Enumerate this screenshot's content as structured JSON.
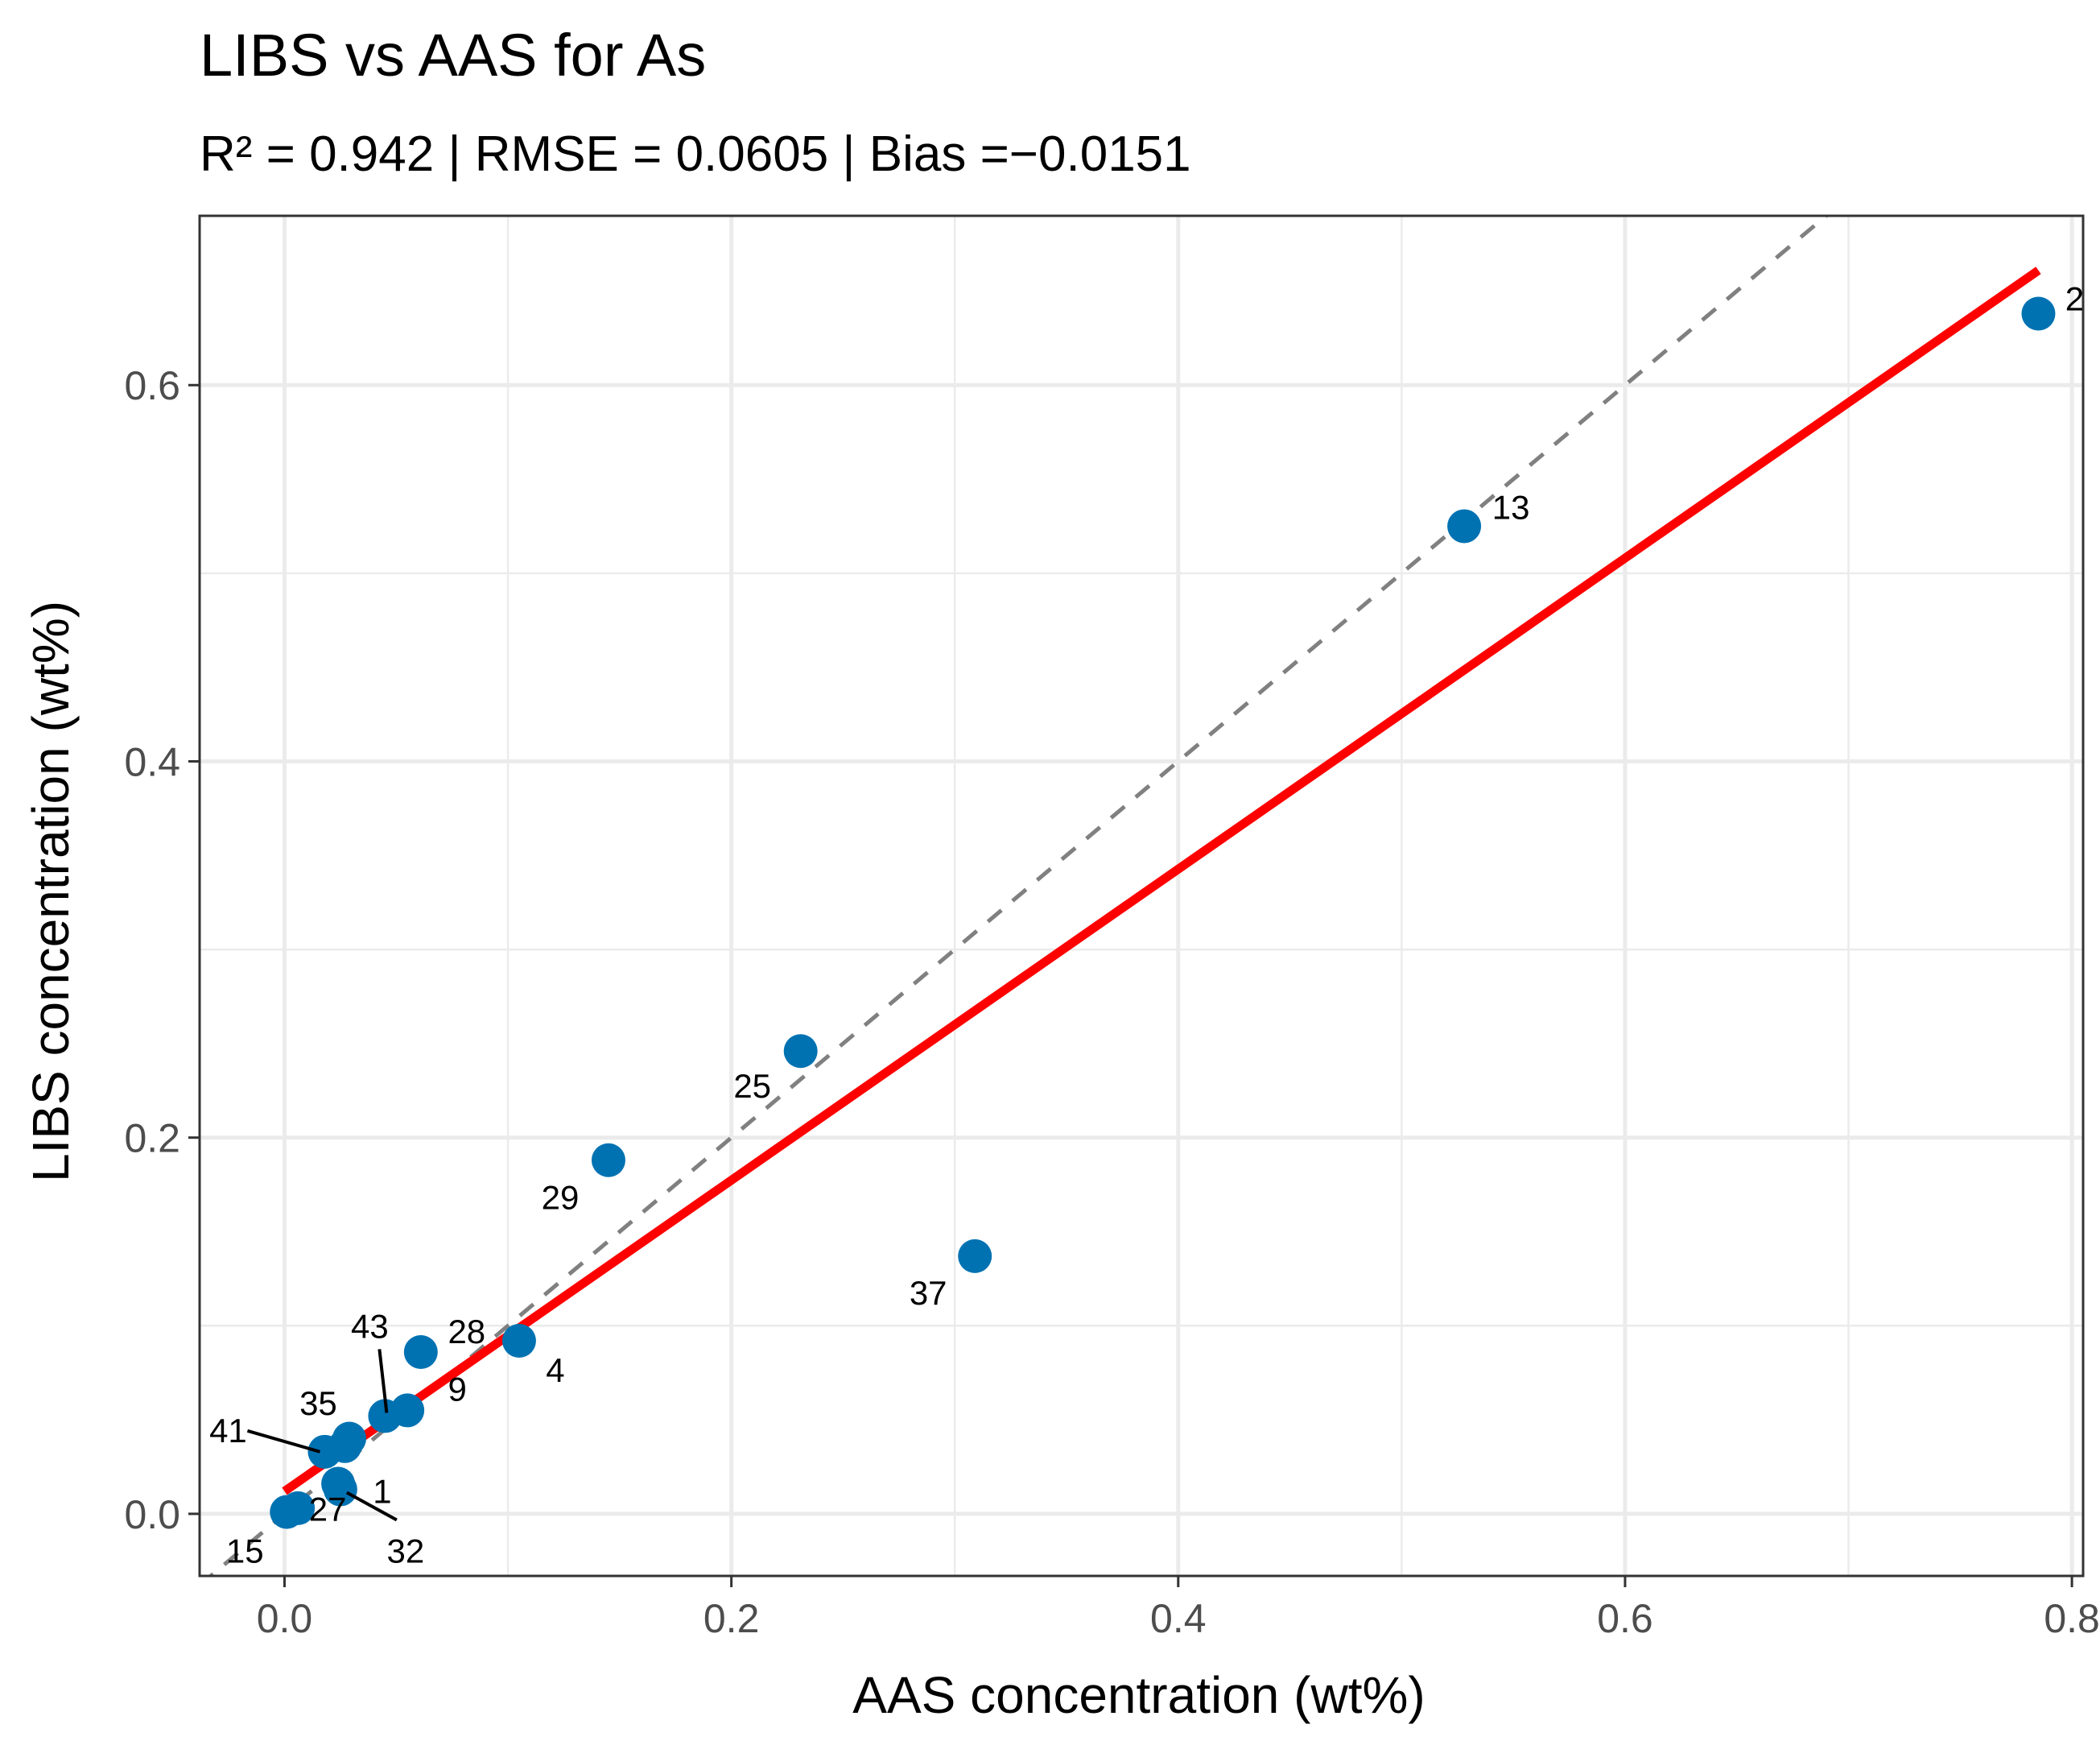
{
  "chart_data": {
    "type": "scatter",
    "title": "LIBS vs AAS for As",
    "subtitle": "R² = 0.942 | RMSE = 0.0605 | Bias =−0.0151",
    "xlabel": "AAS concentration (wt%)",
    "ylabel": "LIBS concentration (wt%)",
    "xlim": [
      -0.038,
      0.805
    ],
    "ylim": [
      -0.033,
      0.69
    ],
    "xticks": [
      0.0,
      0.2,
      0.4,
      0.6,
      0.8
    ],
    "xtick_labels": [
      "0.0",
      "0.2",
      "0.4",
      "0.6",
      "0.8"
    ],
    "yticks": [
      0.0,
      0.2,
      0.4,
      0.6
    ],
    "ytick_labels": [
      "0.0",
      "0.2",
      "0.4",
      "0.6"
    ],
    "x_minor_ticks": [
      0.1,
      0.3,
      0.5,
      0.7
    ],
    "y_minor_ticks": [
      0.1,
      0.3,
      0.5
    ],
    "grid": true,
    "point_color": "#0072B2",
    "fit_color": "#FF0000",
    "identity_color": "#808080",
    "points": [
      {
        "id": "2",
        "x": 0.785,
        "y": 0.638
      },
      {
        "id": "13",
        "x": 0.528,
        "y": 0.525
      },
      {
        "id": "25",
        "x": 0.231,
        "y": 0.246
      },
      {
        "id": "29",
        "x": 0.145,
        "y": 0.188
      },
      {
        "id": "37",
        "x": 0.309,
        "y": 0.137
      },
      {
        "id": "4",
        "x": 0.105,
        "y": 0.092
      },
      {
        "id": "28",
        "x": 0.061,
        "y": 0.086
      },
      {
        "id": "9",
        "x": 0.055,
        "y": 0.055
      },
      {
        "id": "43",
        "x": 0.045,
        "y": 0.052
      },
      {
        "id": "1",
        "x": 0.029,
        "y": 0.04
      },
      {
        "id": "35",
        "x": 0.027,
        "y": 0.036
      },
      {
        "id": "41",
        "x": 0.018,
        "y": 0.033
      },
      {
        "id": "27",
        "x": 0.024,
        "y": 0.016
      },
      {
        "id": "32",
        "x": 0.025,
        "y": 0.013
      },
      {
        "id": "15",
        "x": 0.001,
        "y": 0.001
      },
      {
        "id": "",
        "x": 0.006,
        "y": 0.003
      }
    ],
    "fit_line": {
      "x": [
        0.0,
        0.785
      ],
      "y": [
        0.012,
        0.661
      ]
    },
    "identity_line": {
      "slope": 1,
      "intercept": 0
    }
  }
}
